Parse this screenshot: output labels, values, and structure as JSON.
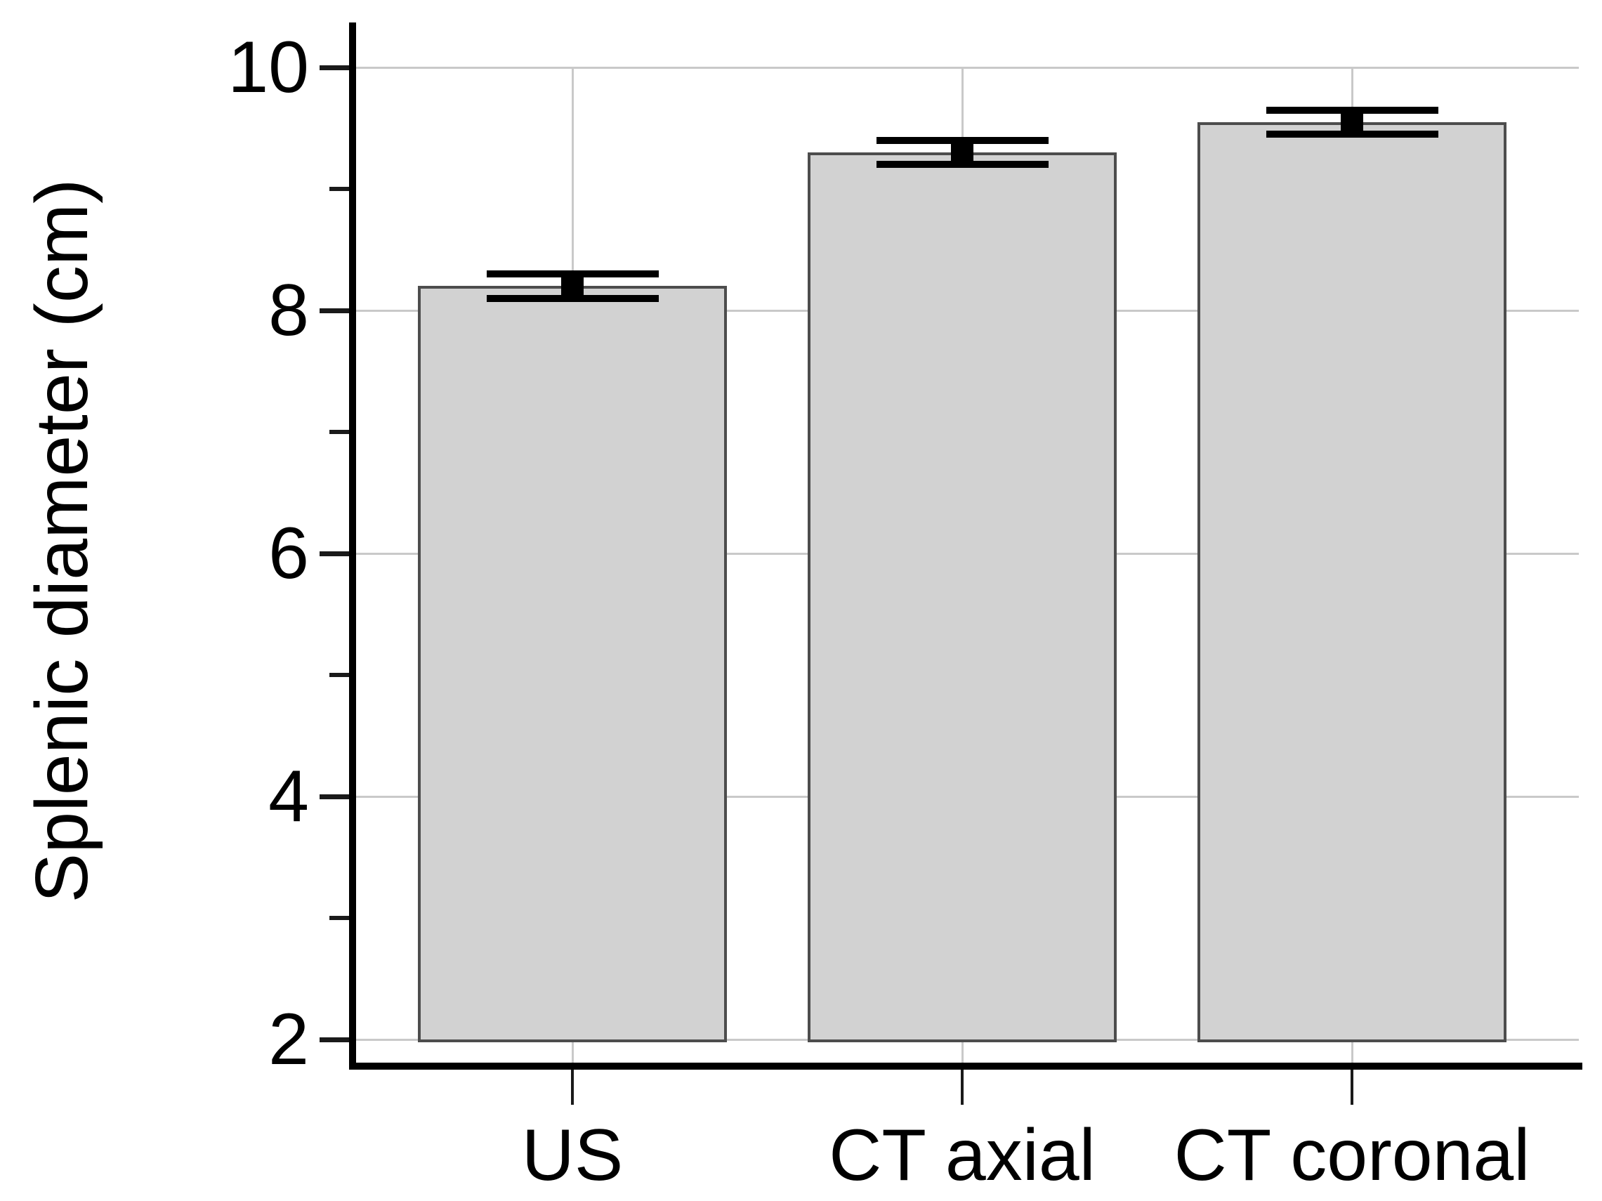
{
  "chart_data": {
    "type": "bar",
    "title": "",
    "ylabel": "Splenic diameter (cm)",
    "xlabel": "",
    "categories": [
      "US",
      "CT axial",
      "CT coronal"
    ],
    "values": [
      8.2,
      9.3,
      9.55
    ],
    "error_bars": {
      "upper": [
        8.3,
        9.4,
        9.65
      ],
      "lower": [
        8.1,
        9.2,
        9.45
      ],
      "style": "wide black caps with filled square mean marker"
    },
    "bar_baseline": 2,
    "ylim": [
      2,
      10.4
    ],
    "yticks_major": [
      2,
      4,
      6,
      8,
      10
    ],
    "yticks_minor": [
      3,
      5,
      7,
      9
    ],
    "grid": "on",
    "legend": "none",
    "colors": {
      "bar_fill": "#d2d2d2",
      "bar_border": "#4d4d4d",
      "grid_line": "#c9c9c9",
      "axis_line": "#000000",
      "tick_line": "#1a1a1a",
      "error_marker": "#000000",
      "text": "#000000",
      "background": "#ffffff"
    }
  }
}
